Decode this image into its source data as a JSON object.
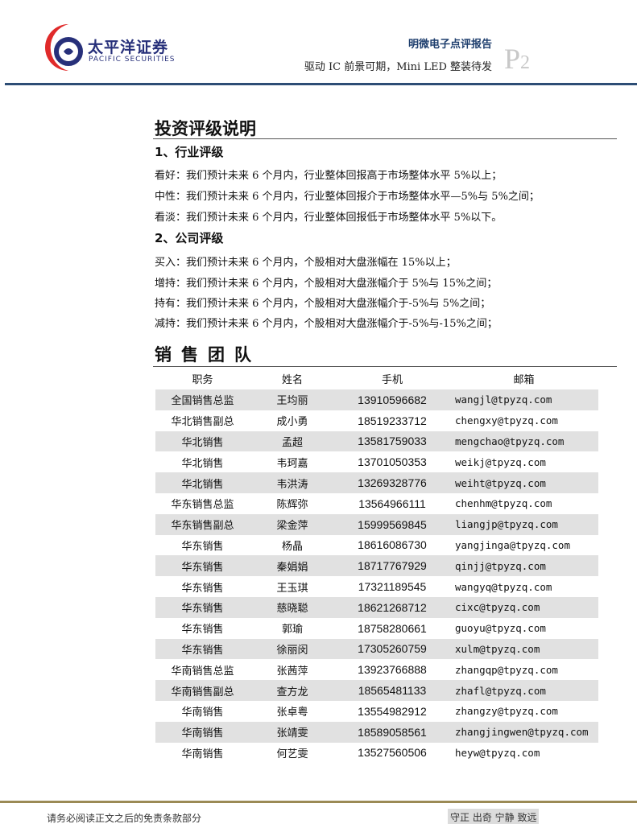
{
  "header": {
    "logo_cn": "太平洋证券",
    "logo_en": "PACIFIC SECURITIES",
    "report_type": "明微电子点评报告",
    "subtitle": "驱动 IC 前景可期，Mini LED 整装待发",
    "page": "P",
    "page_num": "2",
    "rule_color": "#2d4d75"
  },
  "rating": {
    "title": "投资评级说明",
    "industry": {
      "heading": "1、行业评级",
      "items": [
        "看好：我们预计未来 6 个月内，行业整体回报高于市场整体水平 5%以上；",
        "中性：我们预计未来 6 个月内，行业整体回报介于市场整体水平—5%与 5%之间；",
        "看淡：我们预计未来 6 个月内，行业整体回报低于市场整体水平 5%以下。"
      ]
    },
    "company": {
      "heading": "2、公司评级",
      "items": [
        "买入：我们预计未来 6 个月内，个股相对大盘涨幅在 15%以上；",
        "增持：我们预计未来 6 个月内，个股相对大盘涨幅介于 5%与 15%之间；",
        "持有：我们预计未来 6 个月内，个股相对大盘涨幅介于-5%与 5%之间；",
        "减持：我们预计未来 6 个月内，个股相对大盘涨幅介于-5%与-15%之间；"
      ]
    }
  },
  "team": {
    "title": "销售团队",
    "headers": [
      "职务",
      "姓名",
      "手机",
      "邮箱"
    ],
    "rows": [
      [
        "全国销售总监",
        "王均丽",
        "13910596682",
        "wangjl@tpyzq.com"
      ],
      [
        "华北销售副总",
        "成小勇",
        "18519233712",
        "chengxy@tpyzq.com"
      ],
      [
        "华北销售",
        "孟超",
        "13581759033",
        "mengchao@tpyzq.com"
      ],
      [
        "华北销售",
        "韦珂嘉",
        "13701050353",
        "weikj@tpyzq.com"
      ],
      [
        "华北销售",
        "韦洪涛",
        "13269328776",
        "weiht@tpyzq.com"
      ],
      [
        "华东销售总监",
        "陈辉弥",
        "13564966111",
        "chenhm@tpyzq.com"
      ],
      [
        "华东销售副总",
        "梁金萍",
        "15999569845",
        "liangjp@tpyzq.com"
      ],
      [
        "华东销售",
        "杨晶",
        "18616086730",
        "yangjinga@tpyzq.com"
      ],
      [
        "华东销售",
        "秦娟娟",
        "18717767929",
        "qinjj@tpyzq.com"
      ],
      [
        "华东销售",
        "王玉琪",
        "17321189545",
        "wangyq@tpyzq.com"
      ],
      [
        "华东销售",
        "慈晓聪",
        "18621268712",
        "cixc@tpyzq.com"
      ],
      [
        "华东销售",
        "郭瑜",
        "18758280661",
        "guoyu@tpyzq.com"
      ],
      [
        "华东销售",
        "徐丽闵",
        "17305260759",
        "xulm@tpyzq.com"
      ],
      [
        "华南销售总监",
        "张茜萍",
        "13923766888",
        "zhangqp@tpyzq.com"
      ],
      [
        "华南销售副总",
        "查方龙",
        "18565481133",
        "zhafl@tpyzq.com"
      ],
      [
        "华南销售",
        "张卓粤",
        "13554982912",
        "zhangzy@tpyzq.com"
      ],
      [
        "华南销售",
        "张靖雯",
        "18589058561",
        "zhangjingwen@tpyzq.com"
      ],
      [
        "华南销售",
        "何艺雯",
        "13527560506",
        "heyw@tpyzq.com"
      ]
    ]
  },
  "footer": {
    "disclaimer": "请务必阅读正文之后的免责条款部分",
    "motto": "守正 出奇 宁静 致远"
  }
}
